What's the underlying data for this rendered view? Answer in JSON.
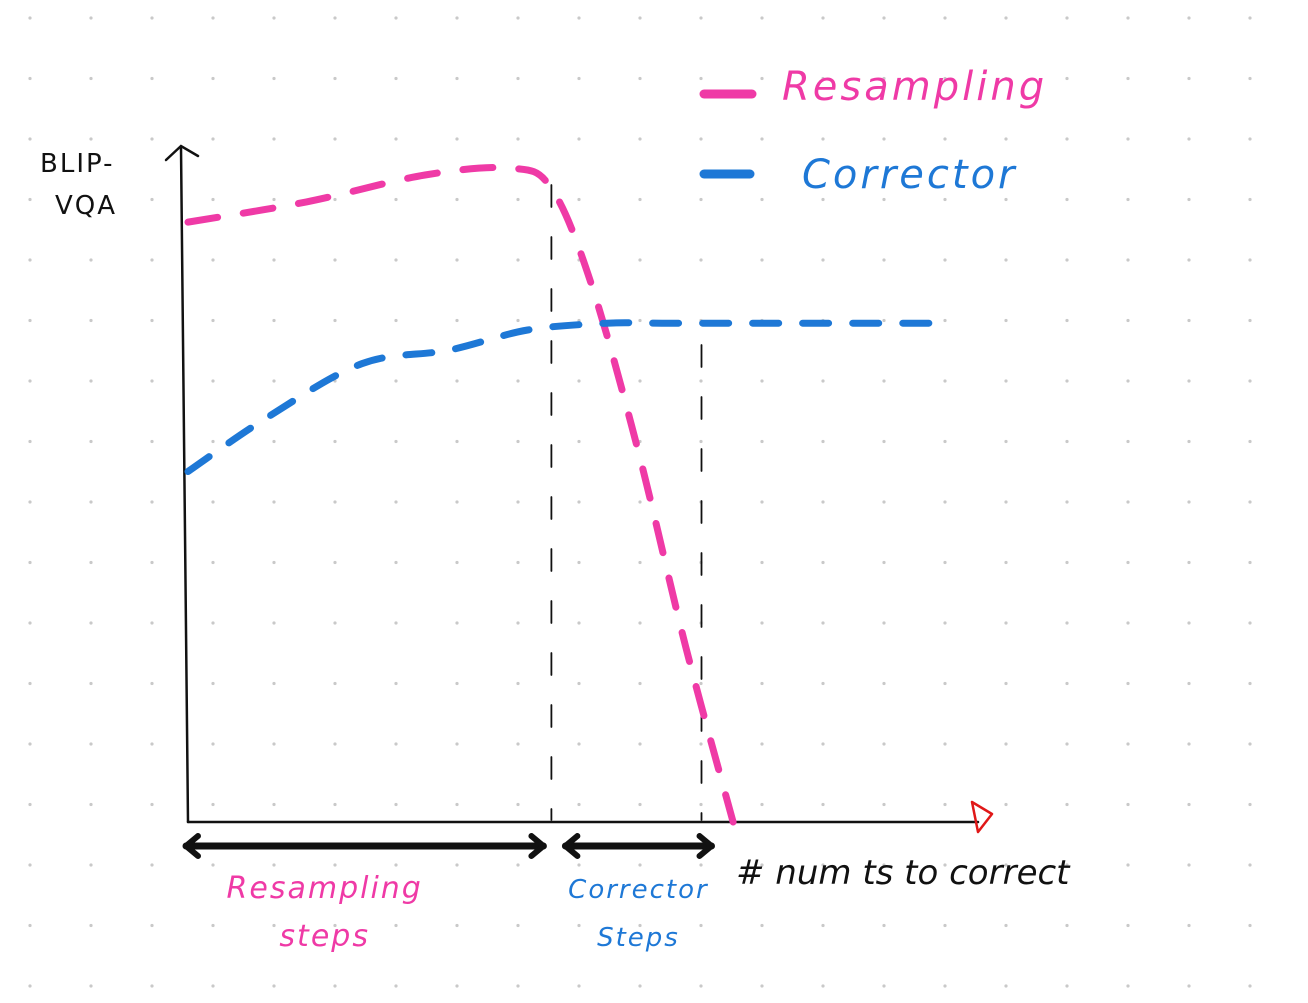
{
  "chart_data": {
    "type": "line",
    "title": "",
    "ylabel": "BLIP-VQA",
    "xlabel": "# num ts to correct",
    "grid": true,
    "legend_position": "top-right",
    "xlim": [
      0,
      10
    ],
    "ylim": [
      0,
      10
    ],
    "axis_ticks_labeled": false,
    "series": [
      {
        "name": "Resampling",
        "color": "#ef3aa6",
        "style": "dashed",
        "x": [
          0,
          1.5,
          3,
          4.1,
          4.6,
          5.1,
          5.7,
          6.3,
          6.9
        ],
        "y": [
          8.9,
          9.2,
          9.6,
          9.7,
          9.4,
          8.0,
          5.5,
          2.6,
          0.0
        ]
      },
      {
        "name": "Corrector",
        "color": "#1e78d6",
        "style": "dashed",
        "x": [
          0,
          1.0,
          2.2,
          3.3,
          4.3,
          5.3,
          6.0,
          7.5,
          9.5
        ],
        "y": [
          5.2,
          6.0,
          6.8,
          7.0,
          7.3,
          7.4,
          7.4,
          7.4,
          7.4
        ]
      }
    ],
    "annotations": [
      {
        "label_lines": [
          "Resampling",
          "steps"
        ],
        "x_range": [
          0,
          4.6
        ],
        "color": "#ef3aa6"
      },
      {
        "label_lines": [
          "Corrector",
          "Steps"
        ],
        "x_range": [
          4.6,
          6.5
        ],
        "color": "#1e78d6"
      }
    ],
    "vertical_markers": [
      {
        "x": 4.6,
        "style": "dashed",
        "color": "#111111"
      },
      {
        "x": 6.5,
        "style": "dashed",
        "color": "#111111"
      }
    ],
    "ylabel_lines": [
      "BLIP-",
      "VQA"
    ]
  }
}
